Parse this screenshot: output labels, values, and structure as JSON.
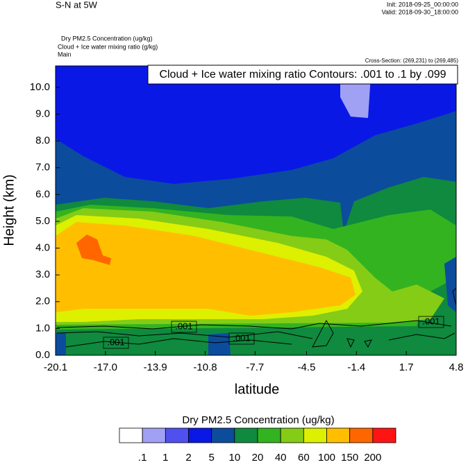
{
  "chart_data": {
    "type": "contour",
    "title": "S-N at 5W",
    "init": "Init: 2018-09-25_00:00:00",
    "valid": "Valid: 2018-09-30_18:00:00",
    "subtitles": [
      "Dry PM2.5 Concentration   (ug/kg)",
      "Cloud + Ice water mixing ratio   (g/kg)",
      "Main"
    ],
    "cross_section": "Cross-Section: (269,231) to (269,485)",
    "contour_info": "Cloud + Ice water mixing ratio Contours: .001 to .1 by .099",
    "contour_labels": [
      ".001",
      ".001",
      ".001",
      ".001"
    ],
    "xlabel": "latitude",
    "ylabel": "Height (km)",
    "xlim": [
      -20.1,
      4.8
    ],
    "xticks": [
      -20.1,
      {
        "value": -17,
        "label": "-17.0"
      },
      -13.9,
      -10.8,
      -7.7,
      -4.5,
      -1.4,
      1.7,
      4.8
    ],
    "ylim": [
      0,
      10.8
    ],
    "yticks": [
      {
        "value": 0,
        "label": "0.0"
      },
      {
        "value": 1,
        "label": "1.0"
      },
      {
        "value": 2,
        "label": "2.0"
      },
      {
        "value": 3,
        "label": "3.0"
      },
      {
        "value": 4,
        "label": "4.0"
      },
      {
        "value": 5,
        "label": "5.0"
      },
      {
        "value": 6,
        "label": "6.0"
      },
      {
        "value": 7,
        "label": "7.0"
      },
      {
        "value": 8,
        "label": "8.0"
      },
      {
        "value": 9,
        "label": "9.0"
      },
      {
        "value": 10,
        "label": "10.0"
      }
    ],
    "colorbar_title": "Dry PM2.5 Concentration  (ug/kg)",
    "levels": [
      {
        "value": 0.1,
        "label": ".1"
      },
      1,
      2,
      5,
      10,
      20,
      40,
      60,
      100,
      150,
      200
    ],
    "colors": [
      "#ffffff",
      "#a0a0f5",
      "#5050ef",
      "#0a18e6",
      "#0c4c9c",
      "#0f8a3e",
      "#33b31f",
      "#84cc16",
      "#dcf000",
      "#ffbf00",
      "#ff6600",
      "#ff1414"
    ]
  }
}
